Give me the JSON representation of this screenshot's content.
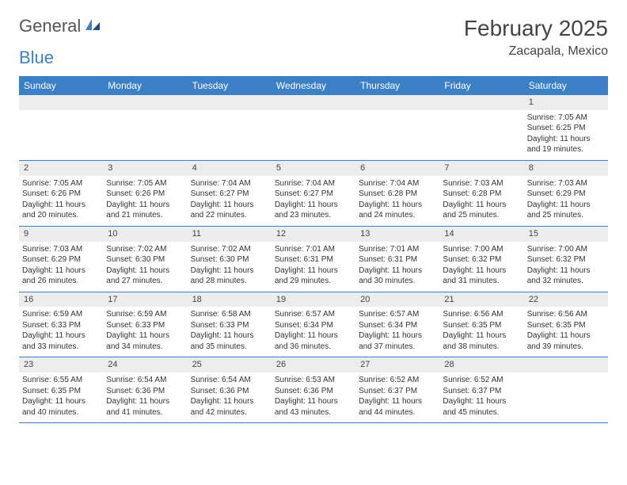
{
  "brand": {
    "word1": "General",
    "word2": "Blue"
  },
  "title": "February 2025",
  "location": "Zacapala, Mexico",
  "header_bg": "#3b7fc4",
  "weekdays": [
    "Sunday",
    "Monday",
    "Tuesday",
    "Wednesday",
    "Thursday",
    "Friday",
    "Saturday"
  ],
  "weeks": [
    [
      {
        "n": "",
        "sr": "",
        "ss": "",
        "dl1": "",
        "dl2": ""
      },
      {
        "n": "",
        "sr": "",
        "ss": "",
        "dl1": "",
        "dl2": ""
      },
      {
        "n": "",
        "sr": "",
        "ss": "",
        "dl1": "",
        "dl2": ""
      },
      {
        "n": "",
        "sr": "",
        "ss": "",
        "dl1": "",
        "dl2": ""
      },
      {
        "n": "",
        "sr": "",
        "ss": "",
        "dl1": "",
        "dl2": ""
      },
      {
        "n": "",
        "sr": "",
        "ss": "",
        "dl1": "",
        "dl2": ""
      },
      {
        "n": "1",
        "sr": "Sunrise: 7:05 AM",
        "ss": "Sunset: 6:25 PM",
        "dl1": "Daylight: 11 hours",
        "dl2": "and 19 minutes."
      }
    ],
    [
      {
        "n": "2",
        "sr": "Sunrise: 7:05 AM",
        "ss": "Sunset: 6:26 PM",
        "dl1": "Daylight: 11 hours",
        "dl2": "and 20 minutes."
      },
      {
        "n": "3",
        "sr": "Sunrise: 7:05 AM",
        "ss": "Sunset: 6:26 PM",
        "dl1": "Daylight: 11 hours",
        "dl2": "and 21 minutes."
      },
      {
        "n": "4",
        "sr": "Sunrise: 7:04 AM",
        "ss": "Sunset: 6:27 PM",
        "dl1": "Daylight: 11 hours",
        "dl2": "and 22 minutes."
      },
      {
        "n": "5",
        "sr": "Sunrise: 7:04 AM",
        "ss": "Sunset: 6:27 PM",
        "dl1": "Daylight: 11 hours",
        "dl2": "and 23 minutes."
      },
      {
        "n": "6",
        "sr": "Sunrise: 7:04 AM",
        "ss": "Sunset: 6:28 PM",
        "dl1": "Daylight: 11 hours",
        "dl2": "and 24 minutes."
      },
      {
        "n": "7",
        "sr": "Sunrise: 7:03 AM",
        "ss": "Sunset: 6:28 PM",
        "dl1": "Daylight: 11 hours",
        "dl2": "and 25 minutes."
      },
      {
        "n": "8",
        "sr": "Sunrise: 7:03 AM",
        "ss": "Sunset: 6:29 PM",
        "dl1": "Daylight: 11 hours",
        "dl2": "and 25 minutes."
      }
    ],
    [
      {
        "n": "9",
        "sr": "Sunrise: 7:03 AM",
        "ss": "Sunset: 6:29 PM",
        "dl1": "Daylight: 11 hours",
        "dl2": "and 26 minutes."
      },
      {
        "n": "10",
        "sr": "Sunrise: 7:02 AM",
        "ss": "Sunset: 6:30 PM",
        "dl1": "Daylight: 11 hours",
        "dl2": "and 27 minutes."
      },
      {
        "n": "11",
        "sr": "Sunrise: 7:02 AM",
        "ss": "Sunset: 6:30 PM",
        "dl1": "Daylight: 11 hours",
        "dl2": "and 28 minutes."
      },
      {
        "n": "12",
        "sr": "Sunrise: 7:01 AM",
        "ss": "Sunset: 6:31 PM",
        "dl1": "Daylight: 11 hours",
        "dl2": "and 29 minutes."
      },
      {
        "n": "13",
        "sr": "Sunrise: 7:01 AM",
        "ss": "Sunset: 6:31 PM",
        "dl1": "Daylight: 11 hours",
        "dl2": "and 30 minutes."
      },
      {
        "n": "14",
        "sr": "Sunrise: 7:00 AM",
        "ss": "Sunset: 6:32 PM",
        "dl1": "Daylight: 11 hours",
        "dl2": "and 31 minutes."
      },
      {
        "n": "15",
        "sr": "Sunrise: 7:00 AM",
        "ss": "Sunset: 6:32 PM",
        "dl1": "Daylight: 11 hours",
        "dl2": "and 32 minutes."
      }
    ],
    [
      {
        "n": "16",
        "sr": "Sunrise: 6:59 AM",
        "ss": "Sunset: 6:33 PM",
        "dl1": "Daylight: 11 hours",
        "dl2": "and 33 minutes."
      },
      {
        "n": "17",
        "sr": "Sunrise: 6:59 AM",
        "ss": "Sunset: 6:33 PM",
        "dl1": "Daylight: 11 hours",
        "dl2": "and 34 minutes."
      },
      {
        "n": "18",
        "sr": "Sunrise: 6:58 AM",
        "ss": "Sunset: 6:33 PM",
        "dl1": "Daylight: 11 hours",
        "dl2": "and 35 minutes."
      },
      {
        "n": "19",
        "sr": "Sunrise: 6:57 AM",
        "ss": "Sunset: 6:34 PM",
        "dl1": "Daylight: 11 hours",
        "dl2": "and 36 minutes."
      },
      {
        "n": "20",
        "sr": "Sunrise: 6:57 AM",
        "ss": "Sunset: 6:34 PM",
        "dl1": "Daylight: 11 hours",
        "dl2": "and 37 minutes."
      },
      {
        "n": "21",
        "sr": "Sunrise: 6:56 AM",
        "ss": "Sunset: 6:35 PM",
        "dl1": "Daylight: 11 hours",
        "dl2": "and 38 minutes."
      },
      {
        "n": "22",
        "sr": "Sunrise: 6:56 AM",
        "ss": "Sunset: 6:35 PM",
        "dl1": "Daylight: 11 hours",
        "dl2": "and 39 minutes."
      }
    ],
    [
      {
        "n": "23",
        "sr": "Sunrise: 6:55 AM",
        "ss": "Sunset: 6:35 PM",
        "dl1": "Daylight: 11 hours",
        "dl2": "and 40 minutes."
      },
      {
        "n": "24",
        "sr": "Sunrise: 6:54 AM",
        "ss": "Sunset: 6:36 PM",
        "dl1": "Daylight: 11 hours",
        "dl2": "and 41 minutes."
      },
      {
        "n": "25",
        "sr": "Sunrise: 6:54 AM",
        "ss": "Sunset: 6:36 PM",
        "dl1": "Daylight: 11 hours",
        "dl2": "and 42 minutes."
      },
      {
        "n": "26",
        "sr": "Sunrise: 6:53 AM",
        "ss": "Sunset: 6:36 PM",
        "dl1": "Daylight: 11 hours",
        "dl2": "and 43 minutes."
      },
      {
        "n": "27",
        "sr": "Sunrise: 6:52 AM",
        "ss": "Sunset: 6:37 PM",
        "dl1": "Daylight: 11 hours",
        "dl2": "and 44 minutes."
      },
      {
        "n": "28",
        "sr": "Sunrise: 6:52 AM",
        "ss": "Sunset: 6:37 PM",
        "dl1": "Daylight: 11 hours",
        "dl2": "and 45 minutes."
      },
      {
        "n": "",
        "sr": "",
        "ss": "",
        "dl1": "",
        "dl2": ""
      }
    ]
  ]
}
